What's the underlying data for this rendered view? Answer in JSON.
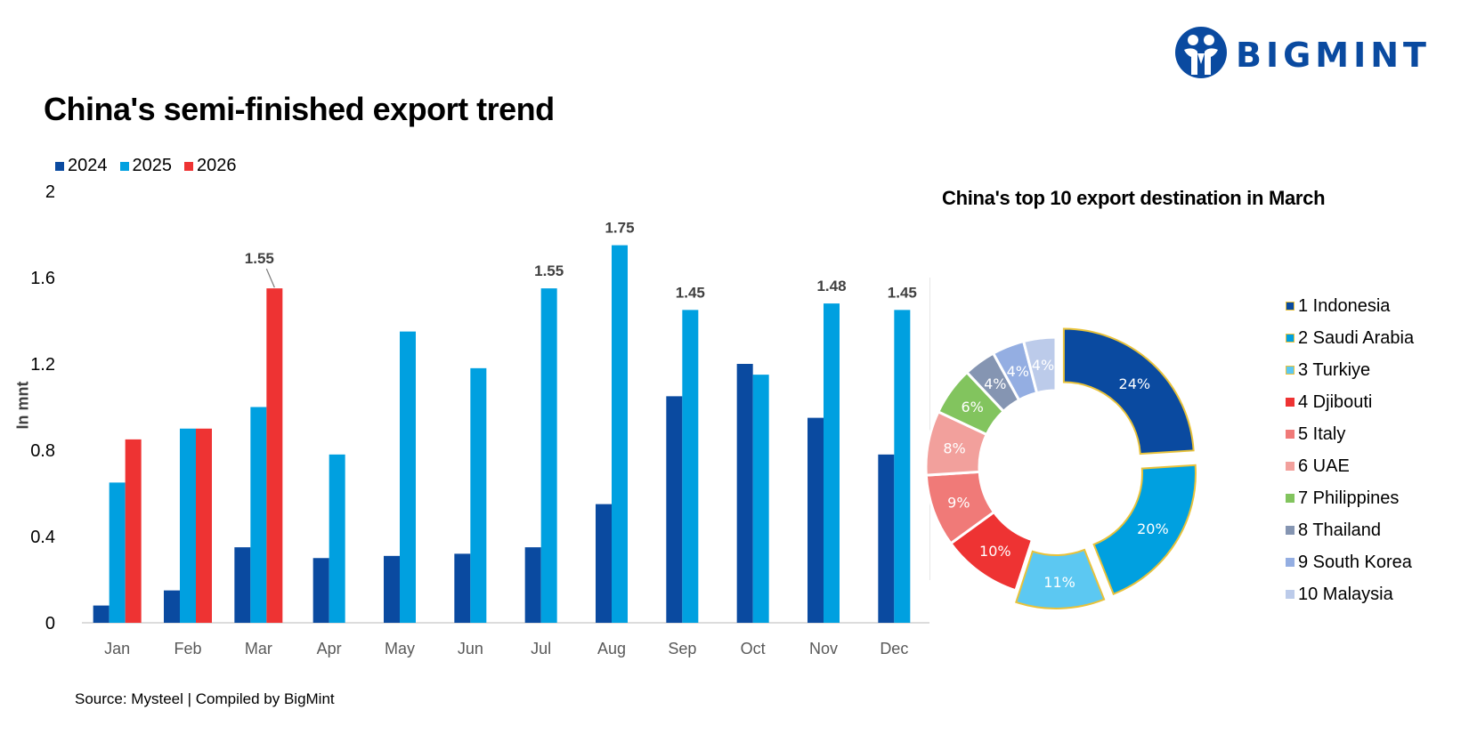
{
  "brand": {
    "name": "BIGMINT",
    "color": "#0a4aa0"
  },
  "source": "Source: Mysteel | Compiled  by BigMint",
  "chart_data": [
    {
      "type": "bar",
      "title": "China's semi-finished export trend",
      "ylabel": "In mnt",
      "xlabel": "",
      "ylim": [
        0,
        2
      ],
      "yticks": [
        0,
        0.4,
        0.8,
        1.2,
        1.6,
        2
      ],
      "ytick_labels": [
        "0",
        "0.4",
        "0.8",
        "1.2",
        "1.6",
        "2"
      ],
      "grid": false,
      "legend": "top-left",
      "categories": [
        "Jan",
        "Feb",
        "Mar",
        "Apr",
        "May",
        "Jun",
        "Jul",
        "Aug",
        "Sep",
        "Oct",
        "Nov",
        "Dec"
      ],
      "series": [
        {
          "name": "2024",
          "color": "#0a4aa0",
          "values": [
            0.08,
            0.15,
            0.35,
            0.3,
            0.31,
            0.32,
            0.35,
            0.55,
            1.05,
            1.2,
            0.95,
            0.78
          ]
        },
        {
          "name": "2025",
          "color": "#00a0e0",
          "values": [
            0.65,
            0.9,
            1.0,
            0.78,
            1.35,
            1.18,
            1.55,
            1.75,
            1.45,
            1.15,
            1.48,
            1.45
          ]
        },
        {
          "name": "2026",
          "color": "#ee3333",
          "values": [
            0.85,
            0.9,
            1.55,
            null,
            null,
            null,
            null,
            null,
            null,
            null,
            null,
            null
          ]
        }
      ],
      "data_labels": [
        {
          "category": "Mar",
          "series": "2026",
          "text": "1.55"
        },
        {
          "category": "Jul",
          "series": "2025",
          "text": "1.55"
        },
        {
          "category": "Aug",
          "series": "2025",
          "text": "1.75"
        },
        {
          "category": "Sep",
          "series": "2025",
          "text": "1.45"
        },
        {
          "category": "Nov",
          "series": "2025",
          "text": "1.48"
        },
        {
          "category": "Dec",
          "series": "2025",
          "text": "1.45"
        }
      ]
    },
    {
      "type": "pie",
      "title": "China's top 10 export destination in March",
      "legend": "right",
      "donut": true,
      "slices": [
        {
          "label": "1 Indonesia",
          "value": 24,
          "text": "24%",
          "color": "#0a4aa0",
          "exploded": true
        },
        {
          "label": "2 Saudi Arabia",
          "value": 20,
          "text": "20%",
          "color": "#00a0e0",
          "exploded": true
        },
        {
          "label": "3 Turkiye",
          "value": 11,
          "text": "11%",
          "color": "#5cc8f2",
          "exploded": true
        },
        {
          "label": "4 Djibouti",
          "value": 10,
          "text": "10%",
          "color": "#ee3333",
          "exploded": false
        },
        {
          "label": "5 Italy",
          "value": 9,
          "text": "9%",
          "color": "#f07a78",
          "exploded": false
        },
        {
          "label": "6 UAE",
          "value": 8,
          "text": "8%",
          "color": "#f2a09c",
          "exploded": false
        },
        {
          "label": "7 Philippines",
          "value": 6,
          "text": "6%",
          "color": "#82c45e",
          "exploded": false
        },
        {
          "label": "8 Thailand",
          "value": 4,
          "text": "4%",
          "color": "#8595b2",
          "exploded": false
        },
        {
          "label": "9 South Korea",
          "value": 4,
          "text": "4%",
          "color": "#94aee2",
          "exploded": false
        },
        {
          "label": "10 Malaysia",
          "value": 4,
          "text": "4%",
          "color": "#bccbea",
          "exploded": false
        }
      ],
      "highlight_border_color": "#e8c23a"
    }
  ]
}
